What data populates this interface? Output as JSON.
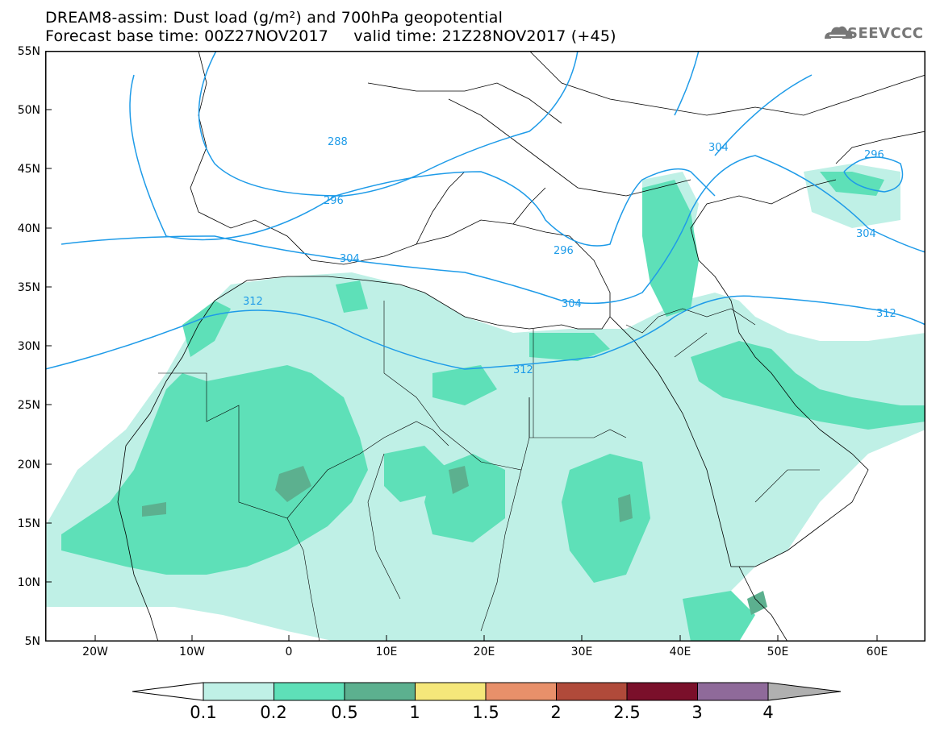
{
  "header": {
    "title_line1": "DREAM8-assim: Dust load (g/m²) and 700hPa geopotential",
    "title_line2": "Forecast base time: 00Z27NOV2017     valid time: 21Z28NOV2017 (+45)",
    "logo_text": "SEEVCCC"
  },
  "map": {
    "lat_labels": [
      "55N",
      "50N",
      "45N",
      "40N",
      "35N",
      "30N",
      "25N",
      "20N",
      "15N",
      "10N",
      "5N"
    ],
    "lon_labels": [
      "20W",
      "10W",
      "0",
      "10E",
      "20E",
      "30E",
      "40E",
      "50E",
      "60E"
    ],
    "contour_labels": [
      "288",
      "296",
      "296",
      "304",
      "304",
      "304",
      "312",
      "312",
      "312",
      "296"
    ],
    "colors": {
      "c1": "#bff0e6",
      "c2": "#5ee0b8",
      "c3": "#5cb08f",
      "c4": "#a08f7a",
      "contour": "#1e9be8"
    }
  },
  "colorbar": {
    "labels": [
      "0.1",
      "0.2",
      "0.5",
      "1",
      "1.5",
      "2",
      "2.5",
      "3",
      "4"
    ],
    "colors": [
      "#bff0e6",
      "#5ee0b8",
      "#5cb08f",
      "#f5e77a",
      "#e8906a",
      "#b04a3a",
      "#7a0f2a",
      "#8f6a9a",
      "#b0b0b0"
    ]
  }
}
